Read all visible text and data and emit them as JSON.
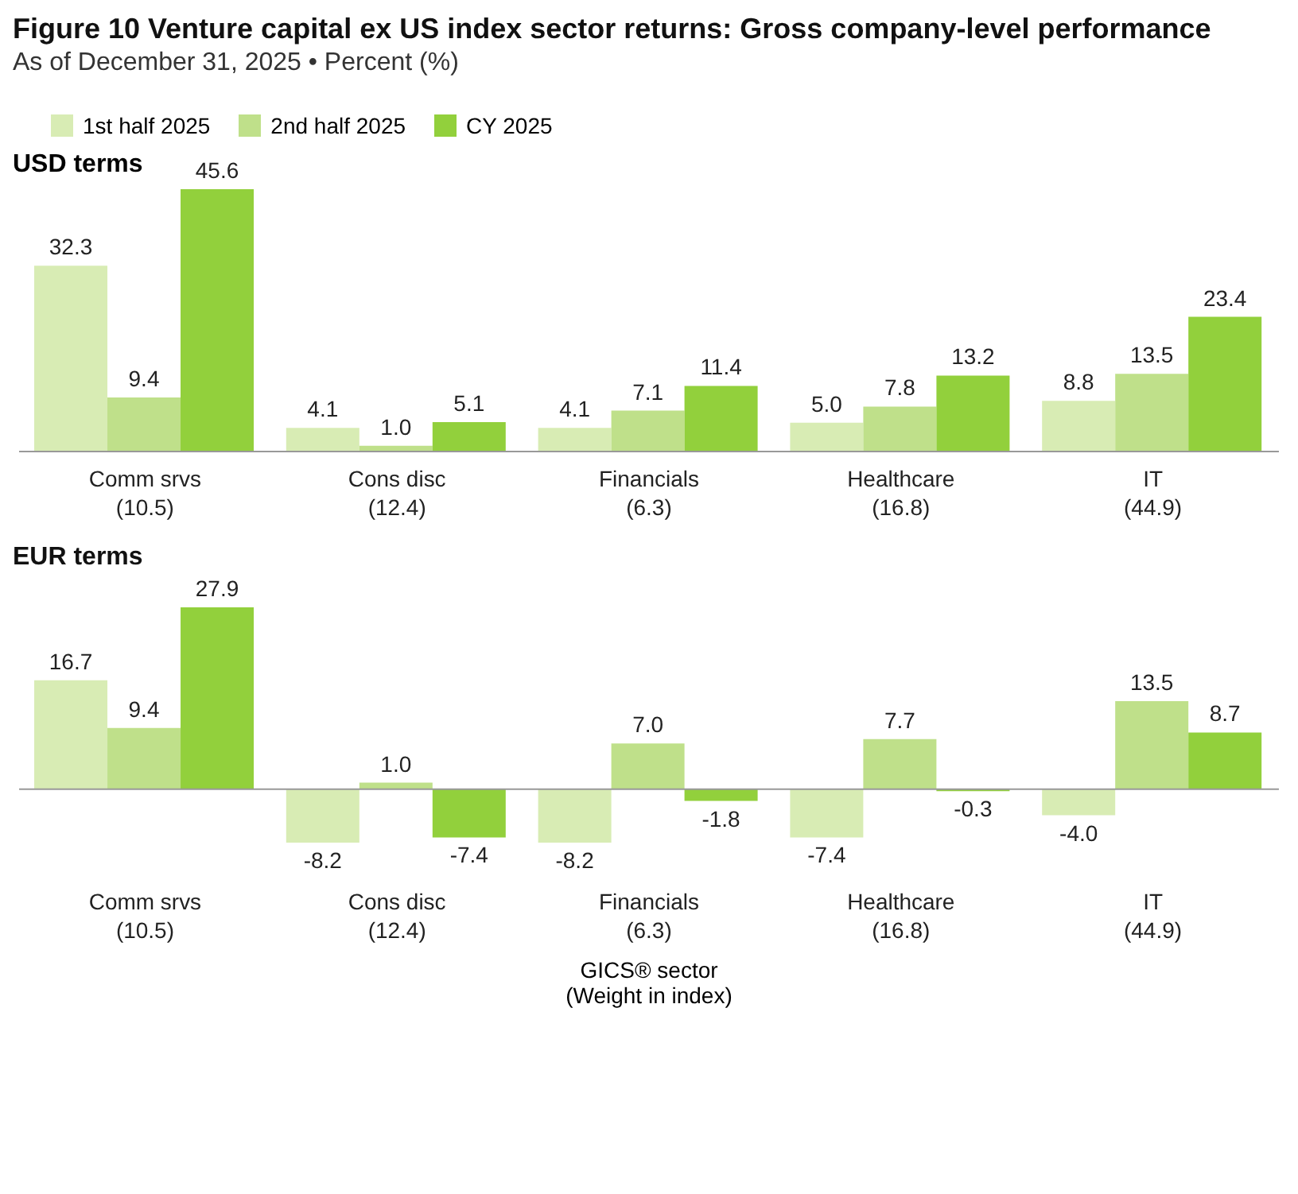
{
  "chart_data": [
    {
      "type": "bar",
      "title": "Figure 10   Venture capital ex US index sector returns: Gross company-level performance",
      "subtitle": "As of December 31, 2025 • Percent (%)",
      "annotations": [
        "USD terms"
      ],
      "legend": "top left",
      "categories": [
        "Comm srvs\n(10.5)",
        "Cons disc\n(12.4)",
        "Financials\n(6.3)",
        "Healthcare\n(16.8)",
        "IT\n(44.9)"
      ],
      "series": [
        {
          "name": "1st half 2025",
          "color": "#d8ecb4",
          "values": [
            32.3,
            4.1,
            4.1,
            5.0,
            8.8
          ],
          "value_labels": [
            "32.3",
            "4.1",
            "4.1",
            "5.0",
            "8.8"
          ]
        },
        {
          "name": "2nd half 2025",
          "color": "#bfe08a",
          "values": [
            9.4,
            1.0,
            7.1,
            7.8,
            13.5
          ],
          "value_labels": [
            "9.4",
            "1.0",
            "7.1",
            "7.8",
            "13.5"
          ]
        },
        {
          "name": "CY 2025",
          "color": "#92d03c",
          "values": [
            45.6,
            5.1,
            11.4,
            13.2,
            23.4
          ],
          "value_labels": [
            "45.6",
            "5.1",
            "11.4",
            "13.2",
            "23.4"
          ]
        }
      ]
    },
    {
      "type": "bar",
      "title": "EUR terms",
      "xlabel": "GICS® sector\n(Weight in index)",
      "categories": [
        "Comm srvs\n(10.5)",
        "Cons disc\n(12.4)",
        "Financials\n(6.3)",
        "Healthcare\n(16.8)",
        "IT\n(44.9)"
      ],
      "series": [
        {
          "color": "#d8ecb4",
          "values": [
            16.7,
            -8.2,
            -8.2,
            -7.4,
            -4.0
          ],
          "value_labels": [
            "16.7",
            "-8.2",
            "-8.2",
            "-7.4",
            "-4.0"
          ]
        },
        {
          "color": "#bfe08a",
          "values": [
            9.4,
            1.0,
            7.0,
            7.7,
            13.5
          ],
          "value_labels": [
            "9.4",
            "1.0",
            "7.0",
            "7.7",
            "13.5"
          ]
        },
        {
          "color": "#92d03c",
          "values": [
            27.9,
            -7.4,
            -1.8,
            -0.3,
            8.7
          ],
          "value_labels": [
            "27.9",
            "-7.4",
            "-1.8",
            "-0.3",
            "8.7"
          ]
        }
      ]
    }
  ]
}
